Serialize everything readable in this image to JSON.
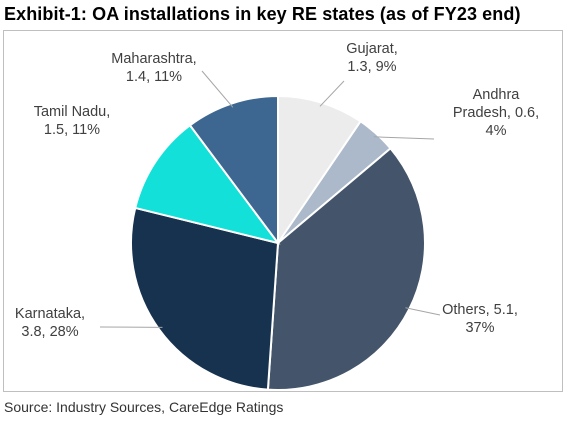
{
  "title": "Exhibit-1: OA installations in key RE states (as of FY23 end)",
  "source": "Source: Industry Sources, CareEdge Ratings",
  "chart_data": {
    "type": "pie",
    "title": "Exhibit-1: OA installations in key RE states (as of FY23 end)",
    "start_angle_deg": 0,
    "direction": "clockwise",
    "slices": [
      {
        "name": "Gujarat",
        "value": 1.3,
        "percent": "9%",
        "color": "#ececec",
        "label_lines": [
          "Gujarat,",
          "1.3, 9%"
        ]
      },
      {
        "name": "Andhra Pradesh",
        "value": 0.6,
        "percent": "4%",
        "color": "#acb9ca",
        "label_lines": [
          "Andhra",
          "Pradesh, 0.6,",
          "4%"
        ]
      },
      {
        "name": "Others",
        "value": 5.1,
        "percent": "37%",
        "color": "#44546a",
        "label_lines": [
          "Others, 5.1,",
          "37%"
        ]
      },
      {
        "name": "Karnataka",
        "value": 3.8,
        "percent": "28%",
        "color": "#17324f",
        "label_lines": [
          "Karnataka,",
          "3.8, 28%"
        ]
      },
      {
        "name": "Tamil Nadu",
        "value": 1.5,
        "percent": "11%",
        "color": "#13e0d8",
        "label_lines": [
          "Tamil Nadu,",
          "1.5, 11%"
        ]
      },
      {
        "name": "Maharashtra",
        "value": 1.4,
        "percent": "11%",
        "color": "#3d6790",
        "label_lines": [
          "Maharashtra,",
          "1.4, 11%"
        ]
      }
    ]
  }
}
